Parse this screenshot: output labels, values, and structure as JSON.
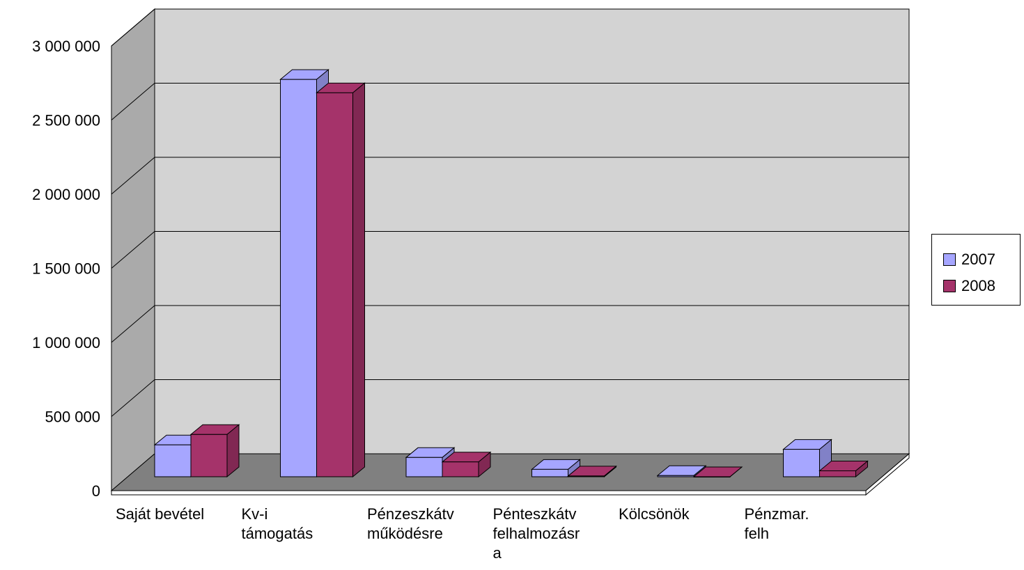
{
  "chart_data": {
    "type": "bar",
    "title": "",
    "xlabel": "",
    "ylabel": "",
    "categories": [
      "Saját bevétel",
      "Kv-i\ntámogatás",
      "Pénzeszkátv\nműködésre",
      "Pénteszkátv\nfelhalmozásr\na",
      "Kölcsönök",
      "Pénzmar.\nfelh"
    ],
    "series": [
      {
        "name": "2007",
        "values": [
          215000,
          2680000,
          130000,
          50000,
          8000,
          185000
        ]
      },
      {
        "name": "2008",
        "values": [
          285000,
          2590000,
          100000,
          5000,
          0,
          40000
        ]
      }
    ],
    "ylim": [
      0,
      3000000
    ],
    "yticks": [
      "0",
      "500 000",
      "1 000 000",
      "1 500 000",
      "2 000 000",
      "2 500 000",
      "3 000 000"
    ],
    "grid": true,
    "legend": "right",
    "colors": {
      "series_2007": "#a6a6ff",
      "series_2008": "#a5336a",
      "back_wall": "#d3d3d3",
      "side_wall": "#aaaaaa",
      "floor": "#808080"
    }
  }
}
